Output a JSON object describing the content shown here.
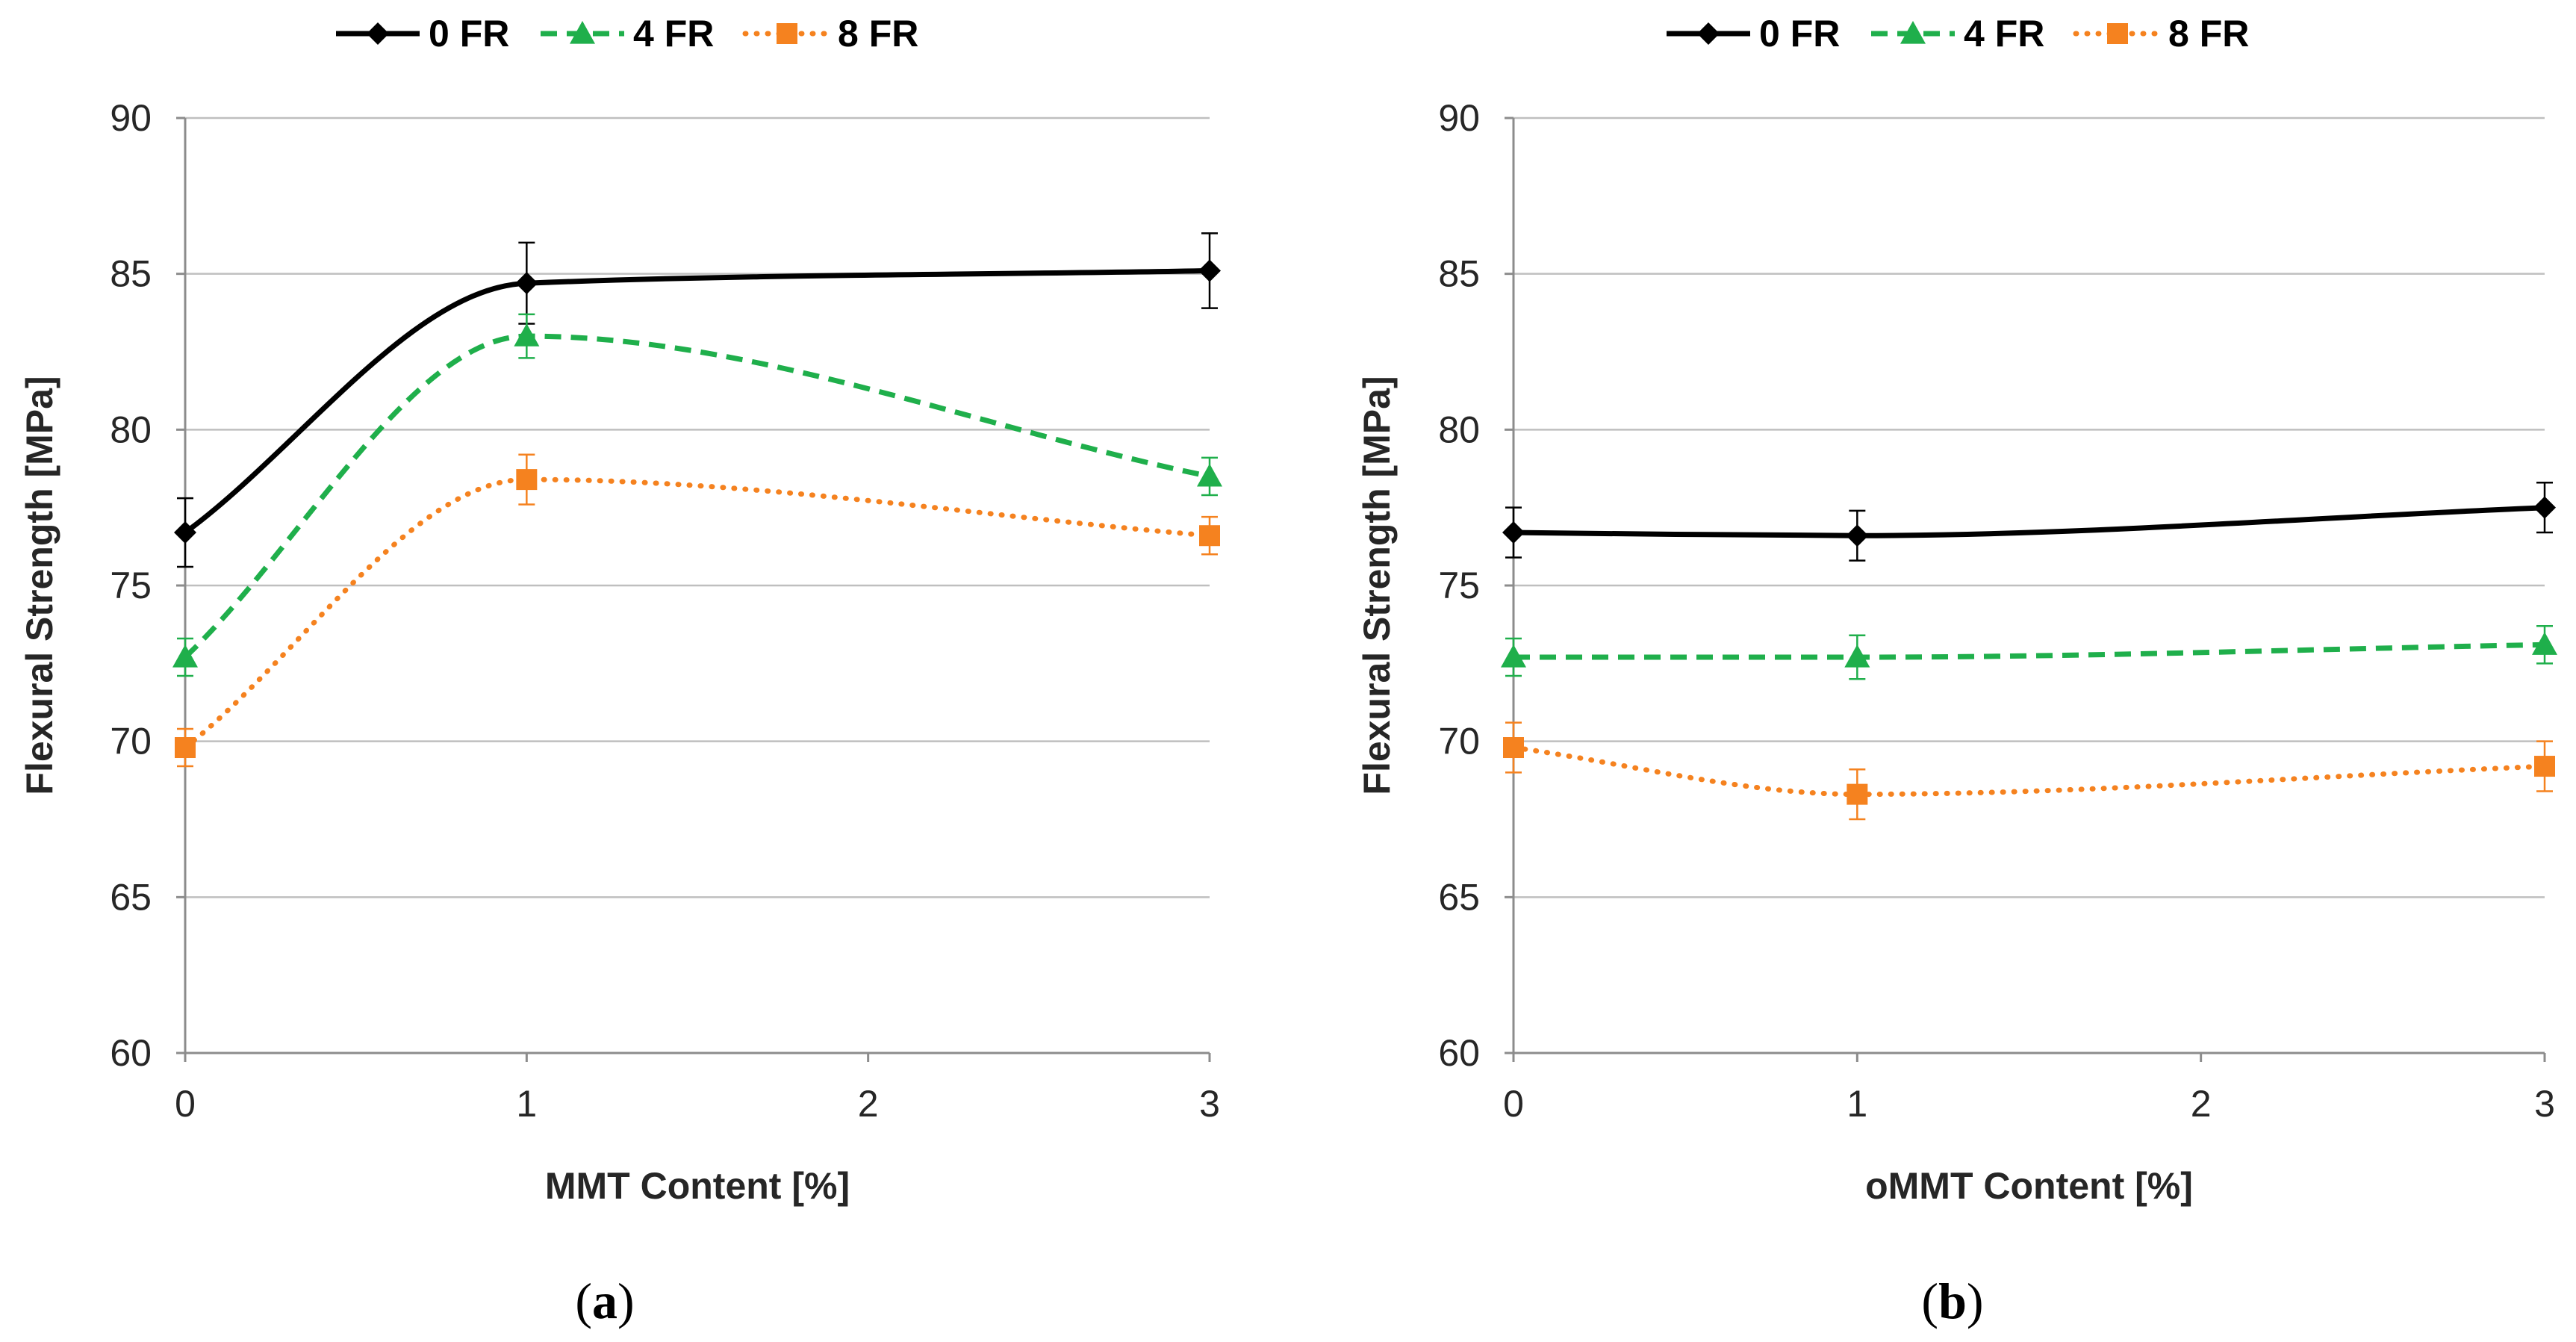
{
  "colors": {
    "0 FR": "#000000",
    "4 FR": "#1faf4b",
    "8 FR": "#f5821f",
    "grid": "#bfbfbf",
    "axis": "#8c8c8c"
  },
  "chart_data": [
    {
      "type": "line",
      "panel_label": "a",
      "xlabel": "MMT Content [%]",
      "ylabel": "Flexural Strength [MPa]",
      "xlim": [
        0,
        3
      ],
      "ylim": [
        60,
        90
      ],
      "xticks": [
        0,
        1,
        2,
        3
      ],
      "yticks": [
        60,
        65,
        70,
        75,
        80,
        85,
        90
      ],
      "grid": true,
      "legend_position": "top",
      "x": [
        0,
        1,
        3
      ],
      "series": [
        {
          "name": "0 FR",
          "values": [
            76.7,
            84.7,
            85.1
          ],
          "errors": [
            1.1,
            1.3,
            1.2
          ],
          "marker": "diamond",
          "line": "solid"
        },
        {
          "name": "4 FR",
          "values": [
            72.7,
            83.0,
            78.5
          ],
          "errors": [
            0.6,
            0.7,
            0.6
          ],
          "marker": "triangle",
          "line": "dashed"
        },
        {
          "name": "8 FR",
          "values": [
            69.8,
            78.4,
            76.6
          ],
          "errors": [
            0.6,
            0.8,
            0.6
          ],
          "marker": "square",
          "line": "dotted"
        }
      ]
    },
    {
      "type": "line",
      "panel_label": "b",
      "xlabel": "oMMT Content [%]",
      "ylabel": "Flexural Strength [MPa]",
      "xlim": [
        0,
        3
      ],
      "ylim": [
        60,
        90
      ],
      "xticks": [
        0,
        1,
        2,
        3
      ],
      "yticks": [
        60,
        65,
        70,
        75,
        80,
        85,
        90
      ],
      "grid": true,
      "legend_position": "top",
      "x": [
        0,
        1,
        3
      ],
      "series": [
        {
          "name": "0 FR",
          "values": [
            76.7,
            76.6,
            77.5
          ],
          "errors": [
            0.8,
            0.8,
            0.8
          ],
          "marker": "diamond",
          "line": "solid"
        },
        {
          "name": "4 FR",
          "values": [
            72.7,
            72.7,
            73.1
          ],
          "errors": [
            0.6,
            0.7,
            0.6
          ],
          "marker": "triangle",
          "line": "dashed"
        },
        {
          "name": "8 FR",
          "values": [
            69.8,
            68.3,
            69.2
          ],
          "errors": [
            0.8,
            0.8,
            0.8
          ],
          "marker": "square",
          "line": "dotted"
        }
      ]
    }
  ]
}
